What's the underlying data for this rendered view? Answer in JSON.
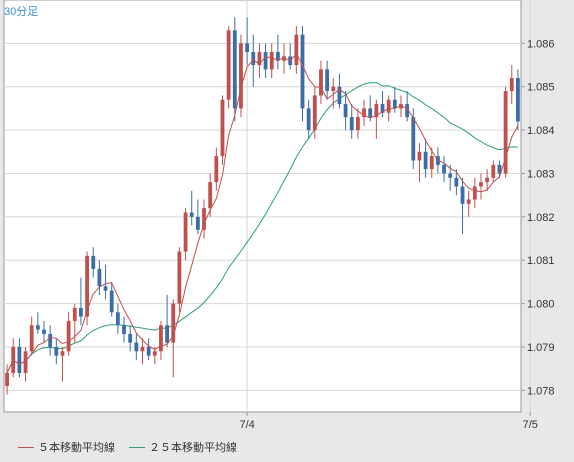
{
  "chart_data": {
    "type": "candlestick",
    "timeframe_label": "30分足",
    "x_tick_labels": [
      "7/4",
      "7/5"
    ],
    "x_tick_index": [
      39,
      85
    ],
    "ylim": [
      1.0775,
      1.087
    ],
    "y_ticks": [
      "1.078",
      "1.079",
      "1.080",
      "1.081",
      "1.082",
      "1.083",
      "1.084",
      "1.085",
      "1.086"
    ],
    "grid": true,
    "legend_position": "bottom-left",
    "colors": {
      "up": "#c0504d",
      "down": "#3b6ea8",
      "ma5": "#c0504d",
      "ma25": "#2e9e78",
      "grid": "#d8d8d8",
      "axis": "#999999",
      "background": "#ffffff"
    },
    "candles": [
      [
        1.0781,
        1.0786,
        1.0779,
        1.0784
      ],
      [
        1.0784,
        1.0792,
        1.0783,
        1.079
      ],
      [
        1.079,
        1.0792,
        1.0783,
        1.0784
      ],
      [
        1.0784,
        1.079,
        1.0782,
        1.0789
      ],
      [
        1.0789,
        1.0797,
        1.0788,
        1.0795
      ],
      [
        1.0795,
        1.0798,
        1.0793,
        1.0794
      ],
      [
        1.0794,
        1.0796,
        1.0791,
        1.0793
      ],
      [
        1.0793,
        1.0795,
        1.0788,
        1.079
      ],
      [
        1.079,
        1.0792,
        1.0786,
        1.0788
      ],
      [
        1.0788,
        1.079,
        1.0782,
        1.0789
      ],
      [
        1.0789,
        1.0798,
        1.0788,
        1.0796
      ],
      [
        1.0796,
        1.08,
        1.0791,
        1.0799
      ],
      [
        1.0799,
        1.0806,
        1.0795,
        1.0797
      ],
      [
        1.0797,
        1.0812,
        1.0795,
        1.0811
      ],
      [
        1.0811,
        1.0813,
        1.0806,
        1.0808
      ],
      [
        1.0808,
        1.081,
        1.0802,
        1.0804
      ],
      [
        1.0804,
        1.0809,
        1.0801,
        1.0803
      ],
      [
        1.0803,
        1.0805,
        1.0797,
        1.0798
      ],
      [
        1.0798,
        1.08,
        1.0793,
        1.0795
      ],
      [
        1.0795,
        1.0797,
        1.0791,
        1.0793
      ],
      [
        1.0793,
        1.0795,
        1.0789,
        1.0791
      ],
      [
        1.0791,
        1.0793,
        1.0787,
        1.0789
      ],
      [
        1.0789,
        1.0792,
        1.0786,
        1.079
      ],
      [
        1.079,
        1.0792,
        1.0787,
        1.0788
      ],
      [
        1.0788,
        1.079,
        1.0786,
        1.0789
      ],
      [
        1.0789,
        1.0796,
        1.0787,
        1.0795
      ],
      [
        1.0795,
        1.0802,
        1.079,
        1.0791
      ],
      [
        1.0791,
        1.0801,
        1.0783,
        1.08
      ],
      [
        1.08,
        1.0813,
        1.0798,
        1.0812
      ],
      [
        1.0812,
        1.0822,
        1.081,
        1.0821
      ],
      [
        1.0821,
        1.0826,
        1.0818,
        1.082
      ],
      [
        1.082,
        1.0824,
        1.0816,
        1.0817
      ],
      [
        1.0817,
        1.0824,
        1.0815,
        1.0822
      ],
      [
        1.0822,
        1.083,
        1.082,
        1.0828
      ],
      [
        1.0828,
        1.0836,
        1.0826,
        1.0834
      ],
      [
        1.0834,
        1.0848,
        1.0832,
        1.0847
      ],
      [
        1.0847,
        1.0864,
        1.0845,
        1.0863
      ],
      [
        1.0863,
        1.0866,
        1.0842,
        1.0845
      ],
      [
        1.0845,
        1.0862,
        1.0843,
        1.086
      ],
      [
        1.086,
        1.0866,
        1.0855,
        1.0858
      ],
      [
        1.0858,
        1.0862,
        1.085,
        1.0855
      ],
      [
        1.0855,
        1.086,
        1.0852,
        1.0858
      ],
      [
        1.0858,
        1.086,
        1.0852,
        1.0854
      ],
      [
        1.0854,
        1.086,
        1.0852,
        1.0858
      ],
      [
        1.0858,
        1.0862,
        1.0854,
        1.0856
      ],
      [
        1.0856,
        1.086,
        1.0853,
        1.0857
      ],
      [
        1.0857,
        1.086,
        1.0854,
        1.0855
      ],
      [
        1.0855,
        1.0864,
        1.0853,
        1.0862
      ],
      [
        1.0862,
        1.0864,
        1.0842,
        1.0845
      ],
      [
        1.0845,
        1.0847,
        1.0838,
        1.084
      ],
      [
        1.084,
        1.085,
        1.0838,
        1.0848
      ],
      [
        1.0848,
        1.0856,
        1.0846,
        1.0854
      ],
      [
        1.0854,
        1.0856,
        1.0847,
        1.0849
      ],
      [
        1.0849,
        1.0852,
        1.0845,
        1.085
      ],
      [
        1.085,
        1.0853,
        1.0845,
        1.0846
      ],
      [
        1.0846,
        1.0849,
        1.084,
        1.0843
      ],
      [
        1.0843,
        1.0846,
        1.0838,
        1.084
      ],
      [
        1.084,
        1.0845,
        1.0838,
        1.0843
      ],
      [
        1.0843,
        1.0847,
        1.0841,
        1.0845
      ],
      [
        1.0845,
        1.0848,
        1.0842,
        1.0843
      ],
      [
        1.0843,
        1.0847,
        1.0838,
        1.0846
      ],
      [
        1.0846,
        1.0849,
        1.0843,
        1.0844
      ],
      [
        1.0844,
        1.0848,
        1.0842,
        1.0847
      ],
      [
        1.0847,
        1.085,
        1.0844,
        1.0845
      ],
      [
        1.0845,
        1.0848,
        1.0843,
        1.0846
      ],
      [
        1.0846,
        1.0849,
        1.0842,
        1.0843
      ],
      [
        1.0843,
        1.0845,
        1.0831,
        1.0833
      ],
      [
        1.0833,
        1.0837,
        1.0828,
        1.0835
      ],
      [
        1.0835,
        1.0838,
        1.0829,
        1.0831
      ],
      [
        1.0831,
        1.0836,
        1.0829,
        1.0834
      ],
      [
        1.0834,
        1.0836,
        1.083,
        1.0832
      ],
      [
        1.0832,
        1.0834,
        1.0828,
        1.083
      ],
      [
        1.083,
        1.0832,
        1.0826,
        1.0829
      ],
      [
        1.0829,
        1.0831,
        1.0825,
        1.0827
      ],
      [
        1.0827,
        1.0829,
        1.0816,
        1.0823
      ],
      [
        1.0823,
        1.0826,
        1.082,
        1.0824
      ],
      [
        1.0824,
        1.0829,
        1.0822,
        1.0827
      ],
      [
        1.0827,
        1.083,
        1.0824,
        1.0828
      ],
      [
        1.0828,
        1.0831,
        1.0826,
        1.0829
      ],
      [
        1.0829,
        1.0833,
        1.0828,
        1.0832
      ],
      [
        1.0832,
        1.0833,
        1.0829,
        1.083
      ],
      [
        1.083,
        1.085,
        1.0829,
        1.0849
      ],
      [
        1.0849,
        1.0855,
        1.0846,
        1.0852
      ],
      [
        1.0852,
        1.0854,
        1.084,
        1.0842
      ]
    ],
    "series": [
      {
        "name": "５本移動平均線",
        "kind": "sma",
        "period": 5,
        "color": "#c0504d"
      },
      {
        "name": "２５本移動平均線",
        "kind": "sma",
        "period": 25,
        "color": "#2e9e78"
      }
    ]
  }
}
